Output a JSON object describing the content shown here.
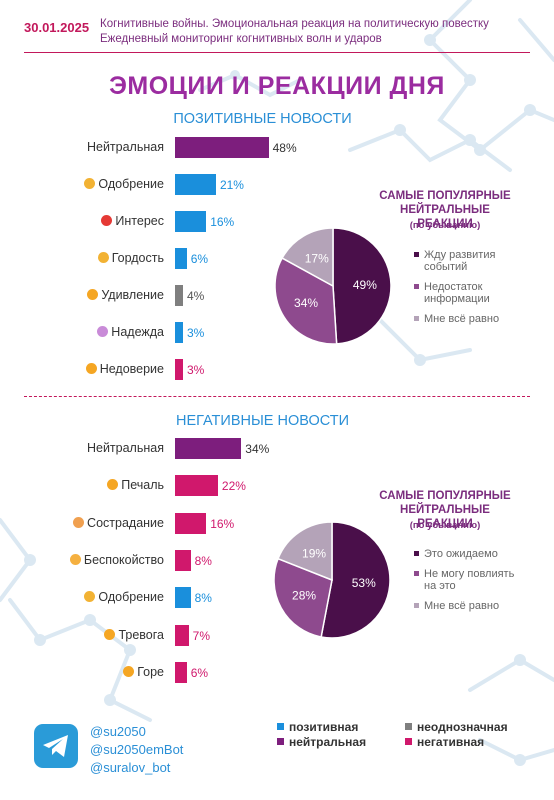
{
  "header": {
    "date": "30.01.2025",
    "line1": "Когнитивные войны. Эмоциональная реакция на политическую повестку",
    "line2": "Ежедневный мониторинг когнитивных волн и ударов"
  },
  "title": "ЭМОЦИИ И РЕАКЦИИ ДНЯ",
  "colors": {
    "positive": "#1a8fdc",
    "ambiguous": "#7f7f7f",
    "neutral": "#7d1e7d",
    "negative": "#d0186c",
    "pie_dark": "#4a0f4a",
    "pie_mid": "#8e4a8e",
    "pie_light": "#b4a3b8"
  },
  "chart_data": [
    {
      "type": "bar",
      "title": "ПОЗИТИВНЫЕ НОВОСТИ",
      "categories": [
        "Нейтральная",
        "Одобрение",
        "Интерес",
        "Гордость",
        "Удивление",
        "Надежда",
        "Недоверие"
      ],
      "values": [
        48,
        21,
        16,
        6,
        4,
        3,
        3
      ],
      "value_labels": [
        "48%",
        "21%",
        "16%",
        "6%",
        "4%",
        "3%",
        "3%"
      ],
      "kinds": [
        "neutral",
        "positive",
        "positive",
        "positive",
        "ambiguous",
        "positive",
        "negative"
      ],
      "icons": [
        "",
        "thumbs-up-icon",
        "exclamation-question-icon",
        "medal-icon",
        "surprised-face-icon",
        "folded-hands-icon",
        "skeptical-face-icon"
      ],
      "unit": "%"
    },
    {
      "type": "pie",
      "title_line1": "САМЫЕ ПОПУЛЯРНЫЕ",
      "title_line2": "НЕЙТРАЛЬНЫЕ РЕАКЦИИ",
      "subtitle": "(по убыванию)",
      "labels": [
        "Жду развития событий",
        "Недостаток информации",
        "Мне всё равно"
      ],
      "legend_lines": [
        [
          "Жду развития",
          "событий"
        ],
        [
          "Недостаток",
          "информации"
        ],
        [
          "Мне всё равно"
        ]
      ],
      "values": [
        49,
        34,
        17
      ],
      "value_labels": [
        "49%",
        "34%",
        "17%"
      ]
    },
    {
      "type": "bar",
      "title": "НЕГАТИВНЫЕ НОВОСТИ",
      "categories": [
        "Нейтральная",
        "Печаль",
        "Сострадание",
        "Беспокойство",
        "Одобрение",
        "Тревога",
        "Горе"
      ],
      "values": [
        34,
        22,
        16,
        8,
        8,
        7,
        6
      ],
      "value_labels": [
        "34%",
        "22%",
        "16%",
        "8%",
        "8%",
        "7%",
        "6%"
      ],
      "kinds": [
        "neutral",
        "negative",
        "negative",
        "negative",
        "positive",
        "negative",
        "negative"
      ],
      "icons": [
        "",
        "sad-face-icon",
        "compassion-face-icon",
        "worried-face-icon",
        "thumbs-up-icon",
        "anxious-face-icon",
        "crying-face-icon"
      ],
      "unit": "%"
    },
    {
      "type": "pie",
      "title_line1": "САМЫЕ ПОПУЛЯРНЫЕ",
      "title_line2": "НЕЙТРАЛЬНЫЕ РЕАКЦИИ",
      "subtitle": "(по убыванию)",
      "labels": [
        "Это ожидаемо",
        "Не могу повлиять на это",
        "Мне всё равно"
      ],
      "legend_lines": [
        [
          "Это ожидаемо"
        ],
        [
          "Не могу повлиять",
          "на это"
        ],
        [
          "Мне всё равно"
        ]
      ],
      "values": [
        53,
        28,
        19
      ],
      "value_labels": [
        "53%",
        "28%",
        "19%"
      ]
    }
  ],
  "footer": {
    "handles": [
      "@su2050",
      "@su2050emBot",
      "@suralov_bot"
    ],
    "legend": [
      {
        "label": "позитивная",
        "kind": "positive"
      },
      {
        "label": "неоднозначная",
        "kind": "ambiguous"
      },
      {
        "label": "нейтральная",
        "kind": "neutral"
      },
      {
        "label": "негативная",
        "kind": "negative"
      }
    ],
    "icon": "telegram-icon"
  }
}
